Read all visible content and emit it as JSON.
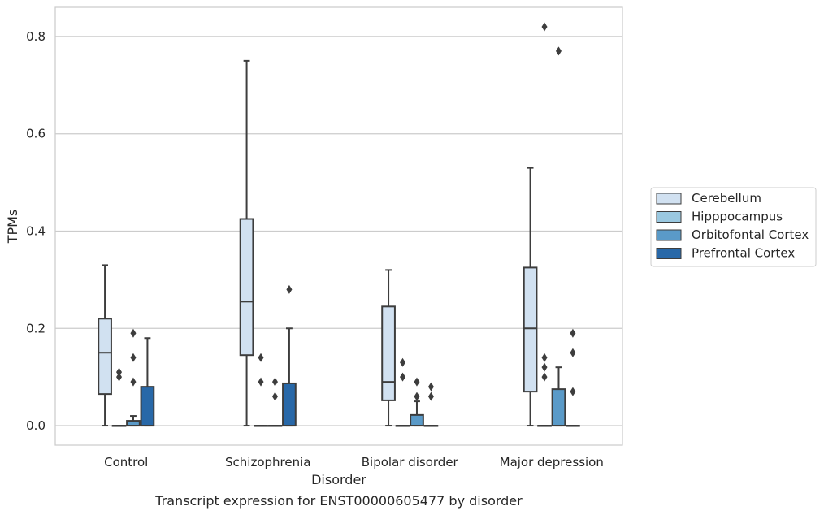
{
  "chart_data": {
    "type": "box",
    "title": "",
    "caption": "Transcript expression for ENST00000605477 by disorder",
    "xlabel": "Disorder",
    "ylabel": "TPMs",
    "ylim": [
      -0.04,
      0.86
    ],
    "yticks": [
      0.0,
      0.2,
      0.4,
      0.6,
      0.8
    ],
    "ytick_labels": [
      "0.0",
      "0.2",
      "0.4",
      "0.6",
      "0.8"
    ],
    "grid": "horizontal",
    "legend_position": "right",
    "categories": [
      "Control",
      "Schizophrenia",
      "Bipolar disorder",
      "Major depression"
    ],
    "series": [
      {
        "name": "Cerebellum",
        "color": "#d1e1f1",
        "boxes": [
          {
            "whisker_low": 0.0,
            "q1": 0.065,
            "median": 0.15,
            "q3": 0.22,
            "whisker_high": 0.33,
            "outliers": []
          },
          {
            "whisker_low": 0.0,
            "q1": 0.145,
            "median": 0.255,
            "q3": 0.425,
            "whisker_high": 0.75,
            "outliers": []
          },
          {
            "whisker_low": 0.0,
            "q1": 0.052,
            "median": 0.09,
            "q3": 0.245,
            "whisker_high": 0.32,
            "outliers": []
          },
          {
            "whisker_low": 0.0,
            "q1": 0.07,
            "median": 0.2,
            "q3": 0.325,
            "whisker_high": 0.53,
            "outliers": []
          }
        ]
      },
      {
        "name": "Hipppocampus",
        "color": "#9ac8e0",
        "boxes": [
          {
            "whisker_low": 0.0,
            "q1": 0.0,
            "median": 0.0,
            "q3": 0.0,
            "whisker_high": 0.0,
            "outliers": [
              0.1,
              0.11
            ]
          },
          {
            "whisker_low": 0.0,
            "q1": 0.0,
            "median": 0.0,
            "q3": 0.0,
            "whisker_high": 0.0,
            "outliers": [
              0.09,
              0.14
            ]
          },
          {
            "whisker_low": 0.0,
            "q1": 0.0,
            "median": 0.0,
            "q3": 0.0,
            "whisker_high": 0.0,
            "outliers": [
              0.1,
              0.13
            ]
          },
          {
            "whisker_low": 0.0,
            "q1": 0.0,
            "median": 0.0,
            "q3": 0.0,
            "whisker_high": 0.0,
            "outliers": [
              0.1,
              0.12,
              0.14,
              0.82
            ]
          }
        ]
      },
      {
        "name": "Orbitofontal Cortex",
        "color": "#5a9ac8",
        "boxes": [
          {
            "whisker_low": 0.0,
            "q1": 0.0,
            "median": 0.0,
            "q3": 0.01,
            "whisker_high": 0.02,
            "outliers": [
              0.09,
              0.14,
              0.19
            ]
          },
          {
            "whisker_low": 0.0,
            "q1": 0.0,
            "median": 0.0,
            "q3": 0.0,
            "whisker_high": 0.0,
            "outliers": [
              0.06,
              0.09
            ]
          },
          {
            "whisker_low": 0.0,
            "q1": 0.0,
            "median": 0.0,
            "q3": 0.022,
            "whisker_high": 0.05,
            "outliers": [
              0.06,
              0.09
            ]
          },
          {
            "whisker_low": 0.0,
            "q1": 0.0,
            "median": 0.0,
            "q3": 0.075,
            "whisker_high": 0.12,
            "outliers": [
              0.77
            ]
          }
        ]
      },
      {
        "name": "Prefrontal Cortex",
        "color": "#2868a8",
        "boxes": [
          {
            "whisker_low": 0.0,
            "q1": 0.0,
            "median": 0.0,
            "q3": 0.08,
            "whisker_high": 0.18,
            "outliers": []
          },
          {
            "whisker_low": 0.0,
            "q1": 0.0,
            "median": 0.0,
            "q3": 0.087,
            "whisker_high": 0.2,
            "outliers": [
              0.28
            ]
          },
          {
            "whisker_low": 0.0,
            "q1": 0.0,
            "median": 0.0,
            "q3": 0.0,
            "whisker_high": 0.0,
            "outliers": [
              0.06,
              0.08
            ]
          },
          {
            "whisker_low": 0.0,
            "q1": 0.0,
            "median": 0.0,
            "q3": 0.0,
            "whisker_high": 0.0,
            "outliers": [
              0.07,
              0.15,
              0.19
            ]
          }
        ]
      }
    ]
  }
}
